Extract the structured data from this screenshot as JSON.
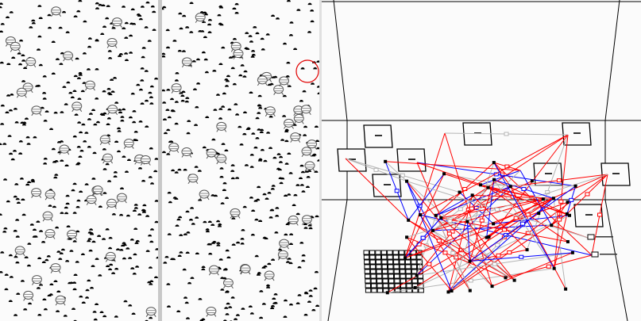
{
  "views": {
    "left_view": {
      "icon": "crowd-agent-icon",
      "agent_color": "#000000"
    },
    "right_view": {
      "icon": "crowd-agent-icon",
      "highlight_color": "#e00000"
    },
    "scene_3d": {
      "edge_colors": {
        "red": "#ff0000",
        "blue": "#0000ff",
        "gray": "#b4b4b4"
      },
      "wall_color": "#000000",
      "background": "#fbfbfb"
    }
  }
}
